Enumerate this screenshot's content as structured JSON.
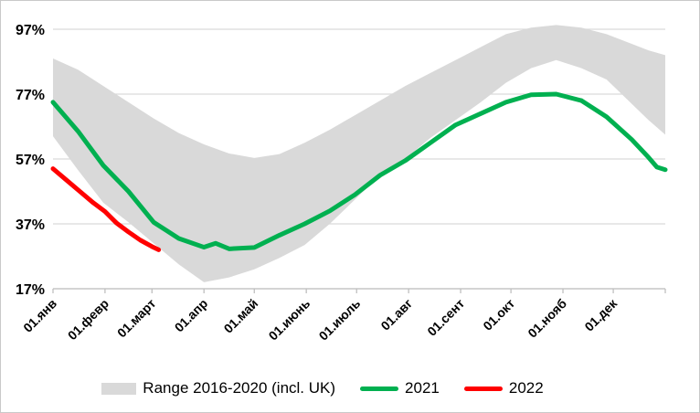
{
  "chart_data": {
    "type": "line",
    "title": "",
    "y_axis": {
      "ticks": [
        17,
        37,
        57,
        77,
        97
      ],
      "tick_labels": [
        "17%",
        "37%",
        "57%",
        "77%",
        "97%"
      ],
      "unit": "%",
      "range": [
        17,
        100
      ]
    },
    "x_axis": {
      "tick_days": [
        0,
        31,
        59,
        90,
        120,
        151,
        181,
        212,
        243,
        273,
        304,
        334
      ],
      "tick_labels": [
        "01.янв",
        "01.февр",
        "01.март",
        "01.апр",
        "01.май",
        "01.июнь",
        "01.июль",
        "01.авг",
        "01.сент",
        "01.окт",
        "01.нояб",
        "01.дек"
      ],
      "end_tick_day": 365,
      "range_days": [
        0,
        365
      ]
    },
    "grid": "horizontal",
    "legend_position": "bottom",
    "series": [
      {
        "name": "Range 2016-2020 (incl. UK)",
        "kind": "band",
        "color": "#D9D9D9",
        "days": [
          0,
          15,
          30,
          45,
          60,
          75,
          90,
          105,
          120,
          135,
          150,
          165,
          180,
          195,
          210,
          225,
          240,
          255,
          270,
          285,
          300,
          315,
          330,
          345,
          355,
          365
        ],
        "upper": [
          88,
          84.5,
          79.5,
          74.5,
          69.5,
          65,
          61.5,
          58.7,
          57.3,
          58.5,
          62,
          66,
          70.5,
          75,
          79.5,
          83.5,
          87.5,
          91.5,
          95.5,
          97.5,
          98.3,
          97.5,
          95.5,
          92.5,
          90.5,
          89
        ],
        "lower": [
          64,
          53.5,
          43.5,
          37.5,
          31,
          24.5,
          19,
          20.5,
          23,
          26.5,
          30.5,
          37,
          44.5,
          52,
          57,
          63.5,
          69,
          74.5,
          80.5,
          85,
          87.5,
          85,
          81.5,
          74,
          69,
          64.5
        ]
      },
      {
        "name": "2021",
        "kind": "line",
        "color": "#00B050",
        "days": [
          0,
          15,
          30,
          45,
          60,
          75,
          90,
          97,
          105,
          120,
          135,
          150,
          165,
          180,
          195,
          210,
          225,
          240,
          255,
          270,
          285,
          300,
          315,
          330,
          345,
          355,
          360,
          365
        ],
        "values": [
          74.5,
          65.5,
          55,
          47,
          37.5,
          32.5,
          29.8,
          31,
          29.3,
          29.7,
          33.5,
          37,
          41,
          46,
          52,
          56.5,
          62,
          67.5,
          71,
          74.5,
          76.8,
          77,
          75,
          70,
          63,
          57.5,
          54.5,
          53.7
        ]
      },
      {
        "name": "2022",
        "kind": "line",
        "color": "#FF0000",
        "days": [
          0,
          8,
          16,
          24,
          31,
          38,
          45,
          52,
          59,
          63
        ],
        "values": [
          54,
          50.5,
          47,
          43.5,
          40.8,
          37.2,
          34.5,
          32,
          30,
          29
        ]
      }
    ],
    "colors": {
      "band": "#D9D9D9",
      "line_2021": "#00B050",
      "line_2022": "#FF0000",
      "gridline": "#D9D9D9",
      "axis": "#BFBFBF",
      "text": "#000000",
      "frame_border": "#C9C9C9"
    }
  }
}
